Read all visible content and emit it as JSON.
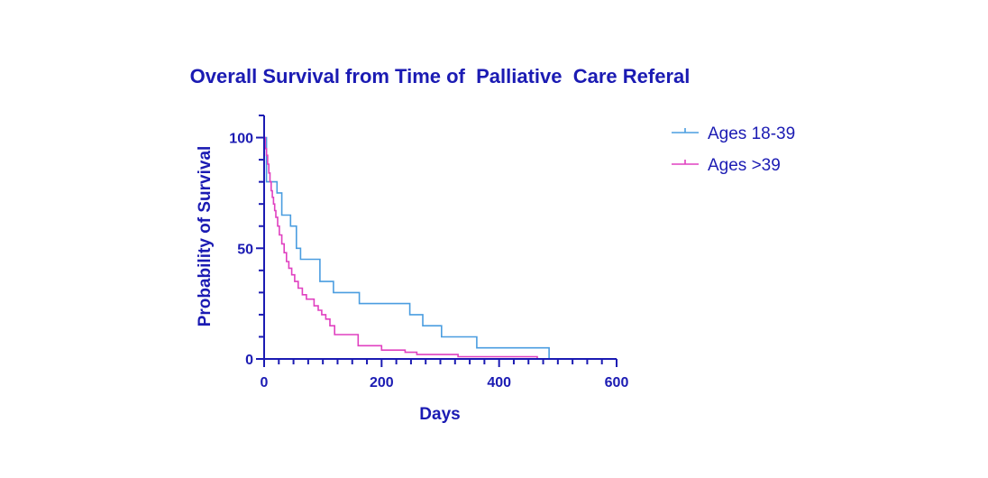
{
  "chart_data": {
    "type": "line",
    "subtype": "kaplan-meier-step",
    "title": "Overall Survival from Time of  Palliative  Care Referal",
    "xlabel": "Days",
    "ylabel": "Probability of Survival",
    "xlim": [
      0,
      600
    ],
    "ylim": [
      0,
      110
    ],
    "x_ticks": [
      0,
      200,
      400,
      600
    ],
    "y_ticks": [
      0,
      50,
      100
    ],
    "grid": false,
    "legend_position": "top-right",
    "colors": {
      "text": "#1b1bb3",
      "axis": "#1b1bb3"
    },
    "series": [
      {
        "name": "Ages 18-39",
        "color": "#4a9de0",
        "x": [
          0,
          4,
          12,
          22,
          30,
          45,
          55,
          62,
          95,
          118,
          162,
          248,
          270,
          302,
          362,
          485
        ],
        "y": [
          100,
          80,
          80,
          75,
          65,
          60,
          50,
          45,
          35,
          30,
          25,
          20,
          15,
          10,
          5,
          0
        ]
      },
      {
        "name": "Ages >39",
        "color": "#e040c0",
        "x": [
          0,
          2,
          4,
          6,
          8,
          10,
          12,
          14,
          16,
          18,
          20,
          23,
          26,
          30,
          34,
          38,
          42,
          47,
          52,
          58,
          65,
          72,
          85,
          92,
          98,
          105,
          112,
          120,
          160,
          200,
          240,
          260,
          330,
          465
        ],
        "y": [
          100,
          95,
          92,
          88,
          84,
          80,
          76,
          73,
          70,
          67,
          64,
          60,
          56,
          52,
          48,
          44,
          41,
          38,
          35,
          32,
          29,
          27,
          24,
          22,
          20,
          18,
          15,
          11,
          6,
          4,
          3,
          2,
          1,
          0
        ]
      }
    ]
  }
}
